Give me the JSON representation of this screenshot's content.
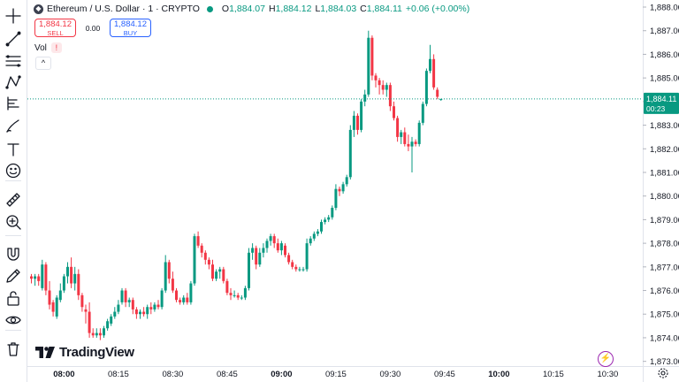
{
  "header": {
    "symbol": "Ethereum / U.S. Dollar · 1 · CRYPTO",
    "symbol_icon": "ethereum-icon",
    "open_label": "O",
    "open_value": "1,884.07",
    "high_label": "H",
    "high_value": "1,884.12",
    "low_label": "L",
    "low_value": "1,884.03",
    "close_label": "C",
    "close_value": "1,884.11",
    "change": "+0.06 (+0.00%)"
  },
  "trade": {
    "sell_price": "1,884.12",
    "sell_label": "SELL",
    "spread": "0.00",
    "buy_price": "1,884.12",
    "buy_label": "BUY"
  },
  "volume": {
    "label": "Vol",
    "warning": "!"
  },
  "collapse_icon": "^",
  "branding": {
    "logo_text": "TradingView"
  },
  "toolbar": [
    "crosshair-icon",
    "trend-line-icon",
    "fib-icon",
    "pattern-icon",
    "forecast-icon",
    "brush-icon",
    "text-icon",
    "emoji-icon",
    "ruler-icon",
    "zoom-in-icon",
    "magnet-icon",
    "pencil-lock-icon",
    "lock-icon",
    "eye-icon",
    "trash-icon"
  ],
  "colors": {
    "up": "#089981",
    "down": "#f23645",
    "price_line": "#089981"
  },
  "chart_data": {
    "type": "candlestick",
    "symbol": "ETHUSD",
    "interval": "1",
    "ylim": [
      1872.8,
      1888.3
    ],
    "y_ticks": [
      "1,873.00",
      "1,874.00",
      "1,875.00",
      "1,876.00",
      "1,877.00",
      "1,878.00",
      "1,879.00",
      "1,880.00",
      "1,881.00",
      "1,882.00",
      "1,883.00",
      "1,884.00",
      "1,885.00",
      "1,886.00",
      "1,887.00",
      "1,888.00"
    ],
    "x_ticks": [
      {
        "label": "08:00",
        "bold": true,
        "index": 9
      },
      {
        "label": "08:15",
        "bold": false,
        "index": 24
      },
      {
        "label": "08:30",
        "bold": false,
        "index": 39
      },
      {
        "label": "08:45",
        "bold": false,
        "index": 54
      },
      {
        "label": "09:00",
        "bold": true,
        "index": 69
      },
      {
        "label": "09:15",
        "bold": false,
        "index": 84
      },
      {
        "label": "09:30",
        "bold": false,
        "index": 99
      },
      {
        "label": "09:45",
        "bold": false,
        "index": 114
      },
      {
        "label": "10:00",
        "bold": true,
        "index": 129
      },
      {
        "label": "10:15",
        "bold": false,
        "index": 144
      },
      {
        "label": "10:30",
        "bold": false,
        "index": 159
      }
    ],
    "last_price": "1,884.11",
    "countdown": "00:23",
    "candles": [
      [
        1876.6,
        1876.7,
        1876.3,
        1876.5
      ],
      [
        1876.5,
        1876.7,
        1876.2,
        1876.6
      ],
      [
        1876.6,
        1876.7,
        1876.2,
        1876.4
      ],
      [
        1876.1,
        1877.3,
        1876.0,
        1877.1
      ],
      [
        1877.1,
        1877.2,
        1875.8,
        1876.0
      ],
      [
        1876.0,
        1876.4,
        1875.2,
        1875.4
      ],
      [
        1875.5,
        1875.6,
        1874.9,
        1875.1
      ],
      [
        1874.9,
        1875.8,
        1874.8,
        1875.7
      ],
      [
        1875.6,
        1876.3,
        1875.5,
        1876.0
      ],
      [
        1876.0,
        1876.7,
        1875.9,
        1876.6
      ],
      [
        1876.6,
        1877.2,
        1876.3,
        1877.0
      ],
      [
        1877.0,
        1877.4,
        1876.1,
        1876.3
      ],
      [
        1876.3,
        1877.0,
        1876.0,
        1876.7
      ],
      [
        1876.7,
        1876.9,
        1875.6,
        1875.8
      ],
      [
        1875.8,
        1875.9,
        1875.1,
        1875.3
      ],
      [
        1875.2,
        1875.4,
        1874.6,
        1875.1
      ],
      [
        1875.1,
        1875.5,
        1874.0,
        1874.2
      ],
      [
        1874.2,
        1874.4,
        1874.0,
        1874.1
      ],
      [
        1874.1,
        1874.4,
        1874.0,
        1874.2
      ],
      [
        1874.2,
        1874.4,
        1873.9,
        1874.1
      ],
      [
        1874.1,
        1874.5,
        1874.0,
        1874.4
      ],
      [
        1874.4,
        1874.8,
        1874.3,
        1874.7
      ],
      [
        1874.6,
        1875.0,
        1874.5,
        1874.9
      ],
      [
        1874.9,
        1875.3,
        1874.8,
        1875.1
      ],
      [
        1875.1,
        1875.6,
        1875.0,
        1875.4
      ],
      [
        1875.5,
        1876.1,
        1875.4,
        1876.0
      ],
      [
        1876.0,
        1876.1,
        1875.3,
        1875.5
      ],
      [
        1875.5,
        1875.7,
        1875.3,
        1875.6
      ],
      [
        1875.6,
        1875.7,
        1875.0,
        1875.2
      ],
      [
        1875.2,
        1875.3,
        1874.8,
        1875.0
      ],
      [
        1875.0,
        1875.2,
        1874.8,
        1875.1
      ],
      [
        1875.1,
        1875.3,
        1874.9,
        1875.0
      ],
      [
        1875.0,
        1875.4,
        1874.8,
        1875.3
      ],
      [
        1875.3,
        1875.5,
        1875.0,
        1875.2
      ],
      [
        1875.2,
        1875.5,
        1875.1,
        1875.4
      ],
      [
        1875.4,
        1875.6,
        1875.2,
        1875.3
      ],
      [
        1875.3,
        1876.1,
        1875.2,
        1876.0
      ],
      [
        1876.0,
        1877.5,
        1875.9,
        1877.2
      ],
      [
        1877.2,
        1877.3,
        1876.3,
        1876.5
      ],
      [
        1876.5,
        1876.8,
        1875.9,
        1876.0
      ],
      [
        1876.0,
        1876.1,
        1875.5,
        1875.6
      ],
      [
        1875.6,
        1875.7,
        1875.4,
        1875.5
      ],
      [
        1875.5,
        1875.8,
        1875.4,
        1875.7
      ],
      [
        1875.7,
        1875.9,
        1875.4,
        1875.5
      ],
      [
        1875.5,
        1876.4,
        1875.4,
        1876.3
      ],
      [
        1876.3,
        1878.4,
        1876.2,
        1878.3
      ],
      [
        1878.3,
        1878.5,
        1877.8,
        1877.9
      ],
      [
        1877.9,
        1878.0,
        1877.4,
        1877.6
      ],
      [
        1877.6,
        1877.7,
        1877.1,
        1877.3
      ],
      [
        1877.3,
        1877.4,
        1876.9,
        1877.1
      ],
      [
        1877.1,
        1877.3,
        1876.4,
        1876.5
      ],
      [
        1876.5,
        1876.9,
        1876.4,
        1876.8
      ],
      [
        1876.8,
        1877.0,
        1876.5,
        1876.9
      ],
      [
        1876.9,
        1877.0,
        1876.3,
        1876.4
      ],
      [
        1876.4,
        1876.5,
        1875.8,
        1875.9
      ],
      [
        1875.9,
        1876.1,
        1875.6,
        1875.8
      ],
      [
        1875.8,
        1876.0,
        1875.7,
        1875.8
      ],
      [
        1875.8,
        1875.9,
        1875.6,
        1875.7
      ],
      [
        1875.7,
        1875.8,
        1875.6,
        1875.7
      ],
      [
        1875.7,
        1876.2,
        1875.6,
        1876.1
      ],
      [
        1876.1,
        1877.8,
        1876.0,
        1877.6
      ],
      [
        1877.6,
        1878.0,
        1877.3,
        1877.8
      ],
      [
        1877.8,
        1877.9,
        1876.9,
        1877.1
      ],
      [
        1877.1,
        1877.8,
        1877.0,
        1877.6
      ],
      [
        1877.6,
        1878.0,
        1877.4,
        1877.8
      ],
      [
        1877.8,
        1878.2,
        1877.6,
        1878.1
      ],
      [
        1878.1,
        1878.4,
        1877.9,
        1878.3
      ],
      [
        1878.3,
        1878.4,
        1877.8,
        1878.0
      ],
      [
        1878.0,
        1878.2,
        1877.6,
        1877.7
      ],
      [
        1877.7,
        1878.1,
        1877.5,
        1878.0
      ],
      [
        1877.9,
        1878.0,
        1877.4,
        1877.5
      ],
      [
        1877.5,
        1877.6,
        1877.1,
        1877.2
      ],
      [
        1877.2,
        1877.3,
        1876.9,
        1877.0
      ],
      [
        1877.0,
        1877.1,
        1876.8,
        1876.9
      ],
      [
        1876.9,
        1877.0,
        1876.8,
        1876.9
      ],
      [
        1876.9,
        1877.0,
        1876.8,
        1876.9
      ],
      [
        1876.9,
        1878.2,
        1876.8,
        1878.0
      ],
      [
        1878.0,
        1878.3,
        1877.9,
        1878.2
      ],
      [
        1878.2,
        1878.5,
        1878.1,
        1878.4
      ],
      [
        1878.4,
        1878.6,
        1878.3,
        1878.5
      ],
      [
        1878.5,
        1879.0,
        1878.4,
        1878.9
      ],
      [
        1878.9,
        1879.1,
        1878.8,
        1879.0
      ],
      [
        1879.0,
        1879.2,
        1878.9,
        1879.1
      ],
      [
        1879.1,
        1879.6,
        1879.0,
        1879.5
      ],
      [
        1879.5,
        1880.5,
        1879.4,
        1880.3
      ],
      [
        1880.3,
        1880.4,
        1880.0,
        1880.2
      ],
      [
        1880.2,
        1880.6,
        1880.1,
        1880.5
      ],
      [
        1880.5,
        1880.9,
        1880.4,
        1880.8
      ],
      [
        1880.8,
        1883.0,
        1880.7,
        1882.8
      ],
      [
        1882.8,
        1883.6,
        1882.5,
        1883.4
      ],
      [
        1883.4,
        1883.5,
        1882.6,
        1882.8
      ],
      [
        1882.8,
        1884.1,
        1882.7,
        1884.0
      ],
      [
        1884.0,
        1884.5,
        1883.8,
        1884.3
      ],
      [
        1884.3,
        1887.0,
        1884.2,
        1886.7
      ],
      [
        1886.7,
        1886.8,
        1884.9,
        1885.1
      ],
      [
        1885.1,
        1885.2,
        1884.6,
        1884.9
      ],
      [
        1884.9,
        1885.0,
        1884.3,
        1884.7
      ],
      [
        1884.7,
        1884.9,
        1884.3,
        1884.5
      ],
      [
        1884.5,
        1884.8,
        1884.2,
        1884.7
      ],
      [
        1884.7,
        1884.8,
        1883.6,
        1883.8
      ],
      [
        1883.8,
        1884.0,
        1883.2,
        1883.3
      ],
      [
        1883.3,
        1883.4,
        1882.3,
        1882.5
      ],
      [
        1882.5,
        1882.8,
        1882.2,
        1882.7
      ],
      [
        1882.7,
        1882.9,
        1882.1,
        1882.2
      ],
      [
        1882.2,
        1882.6,
        1881.9,
        1882.1
      ],
      [
        1882.1,
        1882.5,
        1881.0,
        1882.3
      ],
      [
        1882.3,
        1882.4,
        1882.1,
        1882.2
      ],
      [
        1882.2,
        1883.2,
        1882.1,
        1883.1
      ],
      [
        1883.1,
        1884.0,
        1883.0,
        1883.9
      ],
      [
        1883.9,
        1885.4,
        1883.8,
        1885.3
      ],
      [
        1885.3,
        1886.4,
        1885.2,
        1885.8
      ],
      [
        1885.8,
        1886.0,
        1884.5,
        1884.6
      ],
      [
        1884.5,
        1884.6,
        1884.1,
        1884.2
      ],
      [
        1884.07,
        1884.12,
        1884.03,
        1884.11
      ]
    ]
  }
}
